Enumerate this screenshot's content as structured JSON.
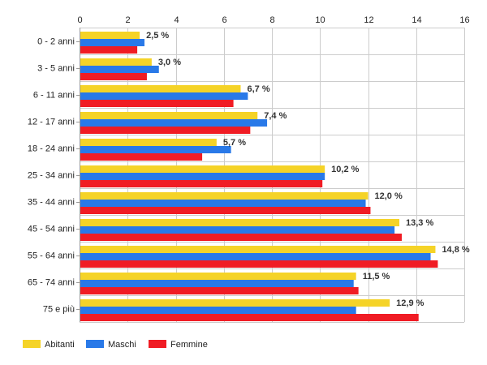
{
  "chart_data": {
    "type": "bar",
    "orientation": "horizontal",
    "categories": [
      "0 - 2 anni",
      "3 - 5 anni",
      "6 - 11 anni",
      "12 - 17 anni",
      "18 - 24 anni",
      "25 - 34 anni",
      "35 - 44 anni",
      "45 - 54 anni",
      "55 - 64 anni",
      "65 - 74 anni",
      "75 e più"
    ],
    "series": [
      {
        "name": "Abitanti",
        "color": "#f5d327",
        "values": [
          2.5,
          3.0,
          6.7,
          7.4,
          5.7,
          10.2,
          12.0,
          13.3,
          14.8,
          11.5,
          12.9
        ]
      },
      {
        "name": "Maschi",
        "color": "#2979e8",
        "values": [
          2.7,
          3.3,
          7.0,
          7.8,
          6.3,
          10.2,
          11.9,
          13.1,
          14.6,
          11.4,
          11.5
        ]
      },
      {
        "name": "Femmine",
        "color": "#f01c24",
        "values": [
          2.4,
          2.8,
          6.4,
          7.1,
          5.1,
          10.1,
          12.1,
          13.4,
          14.9,
          11.6,
          14.1
        ]
      }
    ],
    "data_labels": [
      "2,5 %",
      "3,0 %",
      "6,7 %",
      "7,4 %",
      "5,7 %",
      "10,2 %",
      "12,0 %",
      "13,3 %",
      "14,8 %",
      "11,5 %",
      "12,9 %"
    ],
    "xlim": [
      0,
      16
    ],
    "xticks": [
      "0",
      "2",
      "4",
      "6",
      "8",
      "10",
      "12",
      "14",
      "16"
    ],
    "x_axis_position": "top",
    "grid": true,
    "legend_position": "bottom-left"
  }
}
